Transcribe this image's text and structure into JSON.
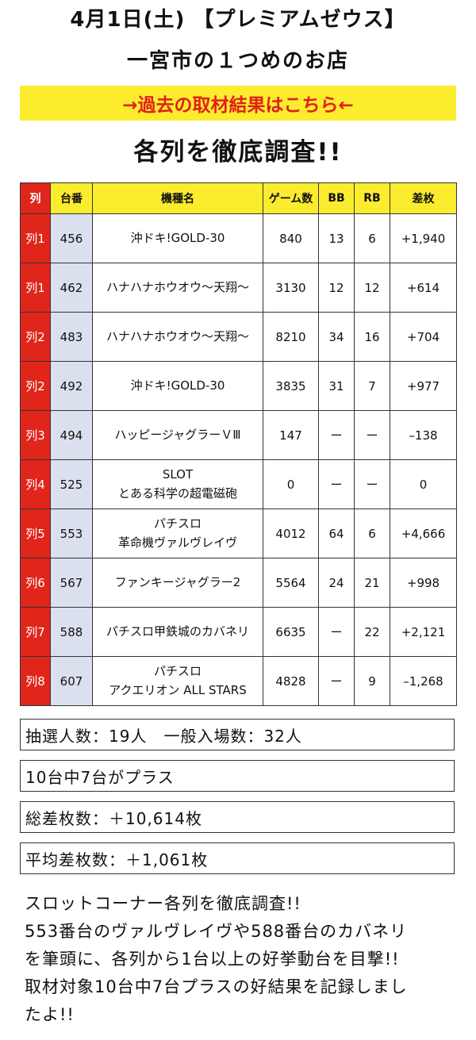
{
  "header": {
    "title": "4月1日(土) 【プレミアムゼウス】",
    "subtitle": "一宮市の１つめのお店",
    "link_label": "→過去の取材結果はこちら←",
    "heading": "各列を徹底調査!!"
  },
  "colors": {
    "accent_red": "#e0251b",
    "header_yellow": "#fbec2e",
    "daiban_blue": "#dbe0ef"
  },
  "table": {
    "columns": [
      "列",
      "台番",
      "機種名",
      "ゲーム数",
      "BB",
      "RB",
      "差枚"
    ],
    "rows": [
      {
        "retsu": "列1",
        "daiban": "456",
        "kishu": "沖ドキ!GOLD-30",
        "games": "840",
        "bb": "13",
        "rb": "6",
        "samai": "+1,940"
      },
      {
        "retsu": "列1",
        "daiban": "462",
        "kishu": "ハナハナホウオウ〜天翔〜",
        "games": "3130",
        "bb": "12",
        "rb": "12",
        "samai": "+614"
      },
      {
        "retsu": "列2",
        "daiban": "483",
        "kishu": "ハナハナホウオウ〜天翔〜",
        "games": "8210",
        "bb": "34",
        "rb": "16",
        "samai": "+704"
      },
      {
        "retsu": "列2",
        "daiban": "492",
        "kishu": "沖ドキ!GOLD-30",
        "games": "3835",
        "bb": "31",
        "rb": "7",
        "samai": "+977"
      },
      {
        "retsu": "列3",
        "daiban": "494",
        "kishu": "ハッピージャグラーＶⅢ",
        "games": "147",
        "bb": "ー",
        "rb": "ー",
        "samai": "–138"
      },
      {
        "retsu": "列4",
        "daiban": "525",
        "kishu": "SLOT\nとある科学の超電磁砲",
        "games": "0",
        "bb": "ー",
        "rb": "ー",
        "samai": "0"
      },
      {
        "retsu": "列5",
        "daiban": "553",
        "kishu": "パチスロ\n革命機ヴァルヴレイヴ",
        "games": "4012",
        "bb": "64",
        "rb": "6",
        "samai": "+4,666"
      },
      {
        "retsu": "列6",
        "daiban": "567",
        "kishu": "ファンキージャグラー2",
        "games": "5564",
        "bb": "24",
        "rb": "21",
        "samai": "+998"
      },
      {
        "retsu": "列7",
        "daiban": "588",
        "kishu": "パチスロ甲鉄城のカバネリ",
        "games": "6635",
        "bb": "ー",
        "rb": "22",
        "samai": "+2,121"
      },
      {
        "retsu": "列8",
        "daiban": "607",
        "kishu": "パチスロ\nアクエリオン ALL STARS",
        "games": "4828",
        "bb": "ー",
        "rb": "9",
        "samai": "–1,268"
      }
    ]
  },
  "stats": {
    "entrants": "抽選人数：19人　一般入場数：32人",
    "plus_count": "10台中7台がプラス",
    "total_diff": "総差枚数：＋10,614枚",
    "avg_diff": "平均差枚数：＋1,061枚"
  },
  "summary": {
    "lines": [
      "スロットコーナー各列を徹底調査!!",
      "553番台のヴァルヴレイヴや588番台のカバネリ",
      "を筆頭に、各列から1台以上の好挙動台を目撃!!",
      "取材対象10台中7台プラスの好結果を記録しまし",
      "たよ!!"
    ]
  }
}
